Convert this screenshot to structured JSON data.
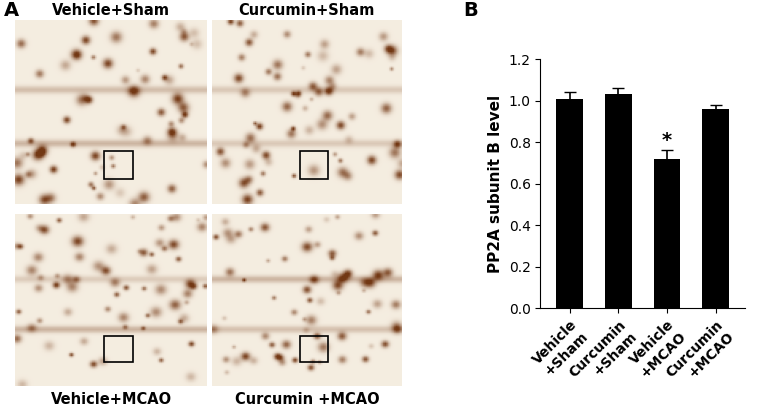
{
  "panel_A": {
    "panel_label": "A",
    "images": [
      {
        "caption": "Vehicle+Sham"
      },
      {
        "caption": "Curcumin+Sham"
      },
      {
        "caption": "Vehicle+MCAO"
      },
      {
        "caption": "Curcumin +MCAO"
      }
    ]
  },
  "chart_data": {
    "type": "bar",
    "panel_label": "B",
    "y_label": "PP2A subunit B level",
    "categories": [
      "Vehicle\n+Sham",
      "Curcumin\n+Sham",
      "Vehicle\n+MCAO",
      "Curcumin\n+MCAO"
    ],
    "values": [
      1.01,
      1.03,
      0.72,
      0.96
    ],
    "errors": [
      0.03,
      0.03,
      0.04,
      0.02
    ],
    "color": "#000000",
    "ylim": [
      0.0,
      1.2
    ],
    "yticks": [
      0.0,
      0.2,
      0.4,
      0.6,
      0.8,
      1.0,
      1.2
    ],
    "grid": false,
    "annotations": [
      {
        "category_index": 2,
        "text": "*"
      }
    ]
  }
}
